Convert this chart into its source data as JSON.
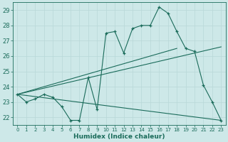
{
  "xlabel": "Humidex (Indice chaleur)",
  "bg_color": "#cde8e8",
  "grid_color": "#b8d8d8",
  "line_color": "#1a6b5a",
  "xlim": [
    -0.5,
    23.5
  ],
  "ylim": [
    21.5,
    29.5
  ],
  "xticks": [
    0,
    1,
    2,
    3,
    4,
    5,
    6,
    7,
    8,
    9,
    10,
    11,
    12,
    13,
    14,
    15,
    16,
    17,
    18,
    19,
    20,
    21,
    22,
    23
  ],
  "yticks": [
    22,
    23,
    24,
    25,
    26,
    27,
    28,
    29
  ],
  "curve_x": [
    0,
    1,
    2,
    3,
    4,
    5,
    6,
    7,
    8,
    9,
    10,
    11,
    12,
    13,
    14,
    15,
    16,
    17,
    18,
    19,
    20,
    21,
    22,
    23
  ],
  "curve_y": [
    23.5,
    23.0,
    23.2,
    23.5,
    23.3,
    22.7,
    21.8,
    21.8,
    24.6,
    22.5,
    27.5,
    27.6,
    26.2,
    27.8,
    28.0,
    28.0,
    29.2,
    28.8,
    27.6,
    26.5,
    26.3,
    24.1,
    23.0,
    21.8
  ],
  "line1_x": [
    0,
    18
  ],
  "line1_y": [
    23.5,
    26.5
  ],
  "line2_x": [
    0,
    23
  ],
  "line2_y": [
    23.5,
    26.6
  ],
  "line3_x": [
    0,
    23
  ],
  "line3_y": [
    23.5,
    21.8
  ]
}
